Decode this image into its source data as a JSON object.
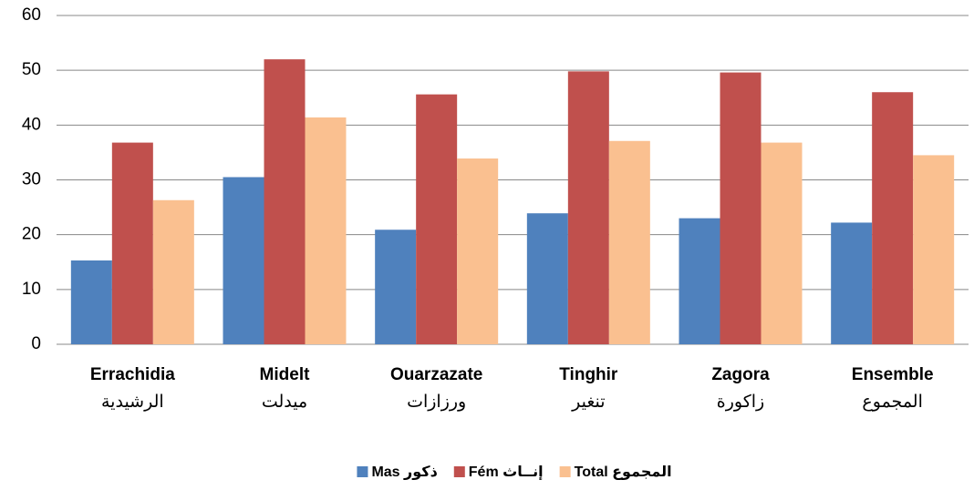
{
  "chart_data": {
    "type": "bar",
    "categories": [
      "Errachidia",
      "Midelt",
      "Ouarzazate",
      "Tinghir",
      "Zagora",
      "Ensemble"
    ],
    "categories_ar": [
      "الرشيدية",
      "ميدلت",
      "ورزازات",
      "تنغير",
      "زاكورة",
      "المجموع"
    ],
    "series": [
      {
        "name": "Mas ذكور",
        "color": "#4f81bd",
        "values": [
          15.3,
          30.5,
          20.9,
          23.9,
          23.0,
          22.2
        ]
      },
      {
        "name": "Fém إنــاث",
        "color": "#c0504d",
        "values": [
          36.8,
          52.0,
          45.6,
          49.8,
          49.6,
          46.0
        ]
      },
      {
        "name": "Total المجموع",
        "color": "#fac090",
        "values": [
          26.3,
          41.4,
          33.9,
          37.1,
          36.8,
          34.5
        ]
      }
    ],
    "ylim": [
      0,
      60
    ],
    "yticks": [
      0,
      10,
      20,
      30,
      40,
      50,
      60
    ],
    "grid": true,
    "legend": "bottom"
  }
}
